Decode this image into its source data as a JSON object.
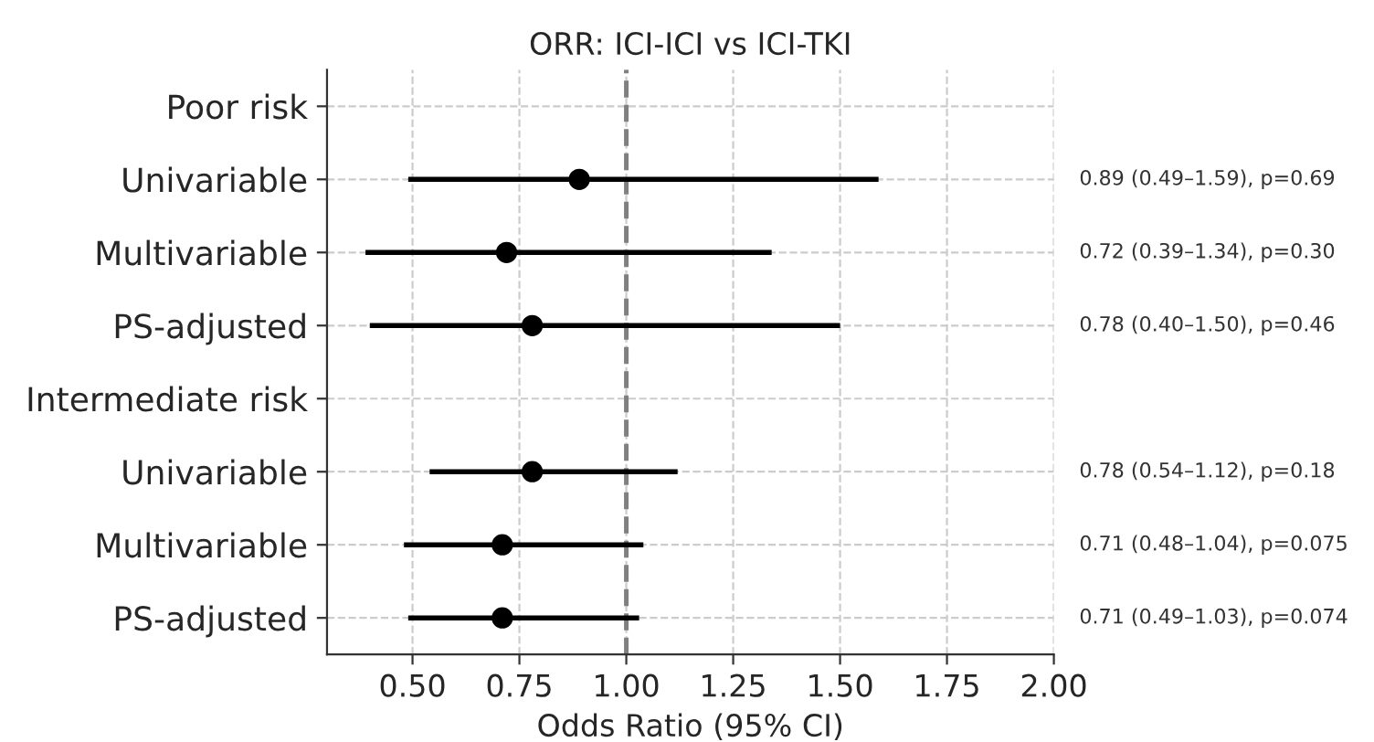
{
  "chart_data": {
    "type": "scatter",
    "orientation": "horizontal",
    "title": "ORR: ICI-ICI vs ICI-TKI",
    "xlabel": "Odds Ratio (95% CI)",
    "categories": [
      "Poor risk",
      "Univariable",
      "Multivariable",
      "PS-adjusted",
      "Intermediate risk",
      "Univariable",
      "Multivariable",
      "PS-adjusted"
    ],
    "values": [
      null,
      0.89,
      0.72,
      0.78,
      null,
      0.78,
      0.71,
      0.71
    ],
    "errors": [
      null,
      [
        0.49,
        1.59
      ],
      [
        0.39,
        1.34
      ],
      [
        0.4,
        1.5
      ],
      null,
      [
        0.54,
        1.12
      ],
      [
        0.48,
        1.04
      ],
      [
        0.49,
        1.03
      ]
    ],
    "annotations": [
      "0.89 (0.49–1.59), p=0.69",
      "0.72 (0.39–1.34), p=0.30",
      "0.78 (0.40–1.50), p=0.46",
      "0.78 (0.54–1.12), p=0.18",
      "0.71 (0.48–1.04), p=0.075",
      "0.71 (0.49–1.03), p=0.074"
    ],
    "color": "#000000",
    "marker": "circle",
    "xlim": [
      0.3,
      2.0
    ],
    "xticks": [
      {
        "value": 0.5,
        "label": "0.50"
      },
      {
        "value": 0.75,
        "label": "0.75"
      },
      {
        "value": 1.0,
        "label": "1.00"
      },
      {
        "value": 1.25,
        "label": "1.25"
      },
      {
        "value": 1.5,
        "label": "1.50"
      },
      {
        "value": 1.75,
        "label": "1.75"
      },
      {
        "value": 2.0,
        "label": "2.00"
      }
    ],
    "ref_lines": [
      {
        "axis": "x",
        "value": 1.0,
        "color": "#808080",
        "line_style": "dashed"
      }
    ],
    "grid": true
  }
}
